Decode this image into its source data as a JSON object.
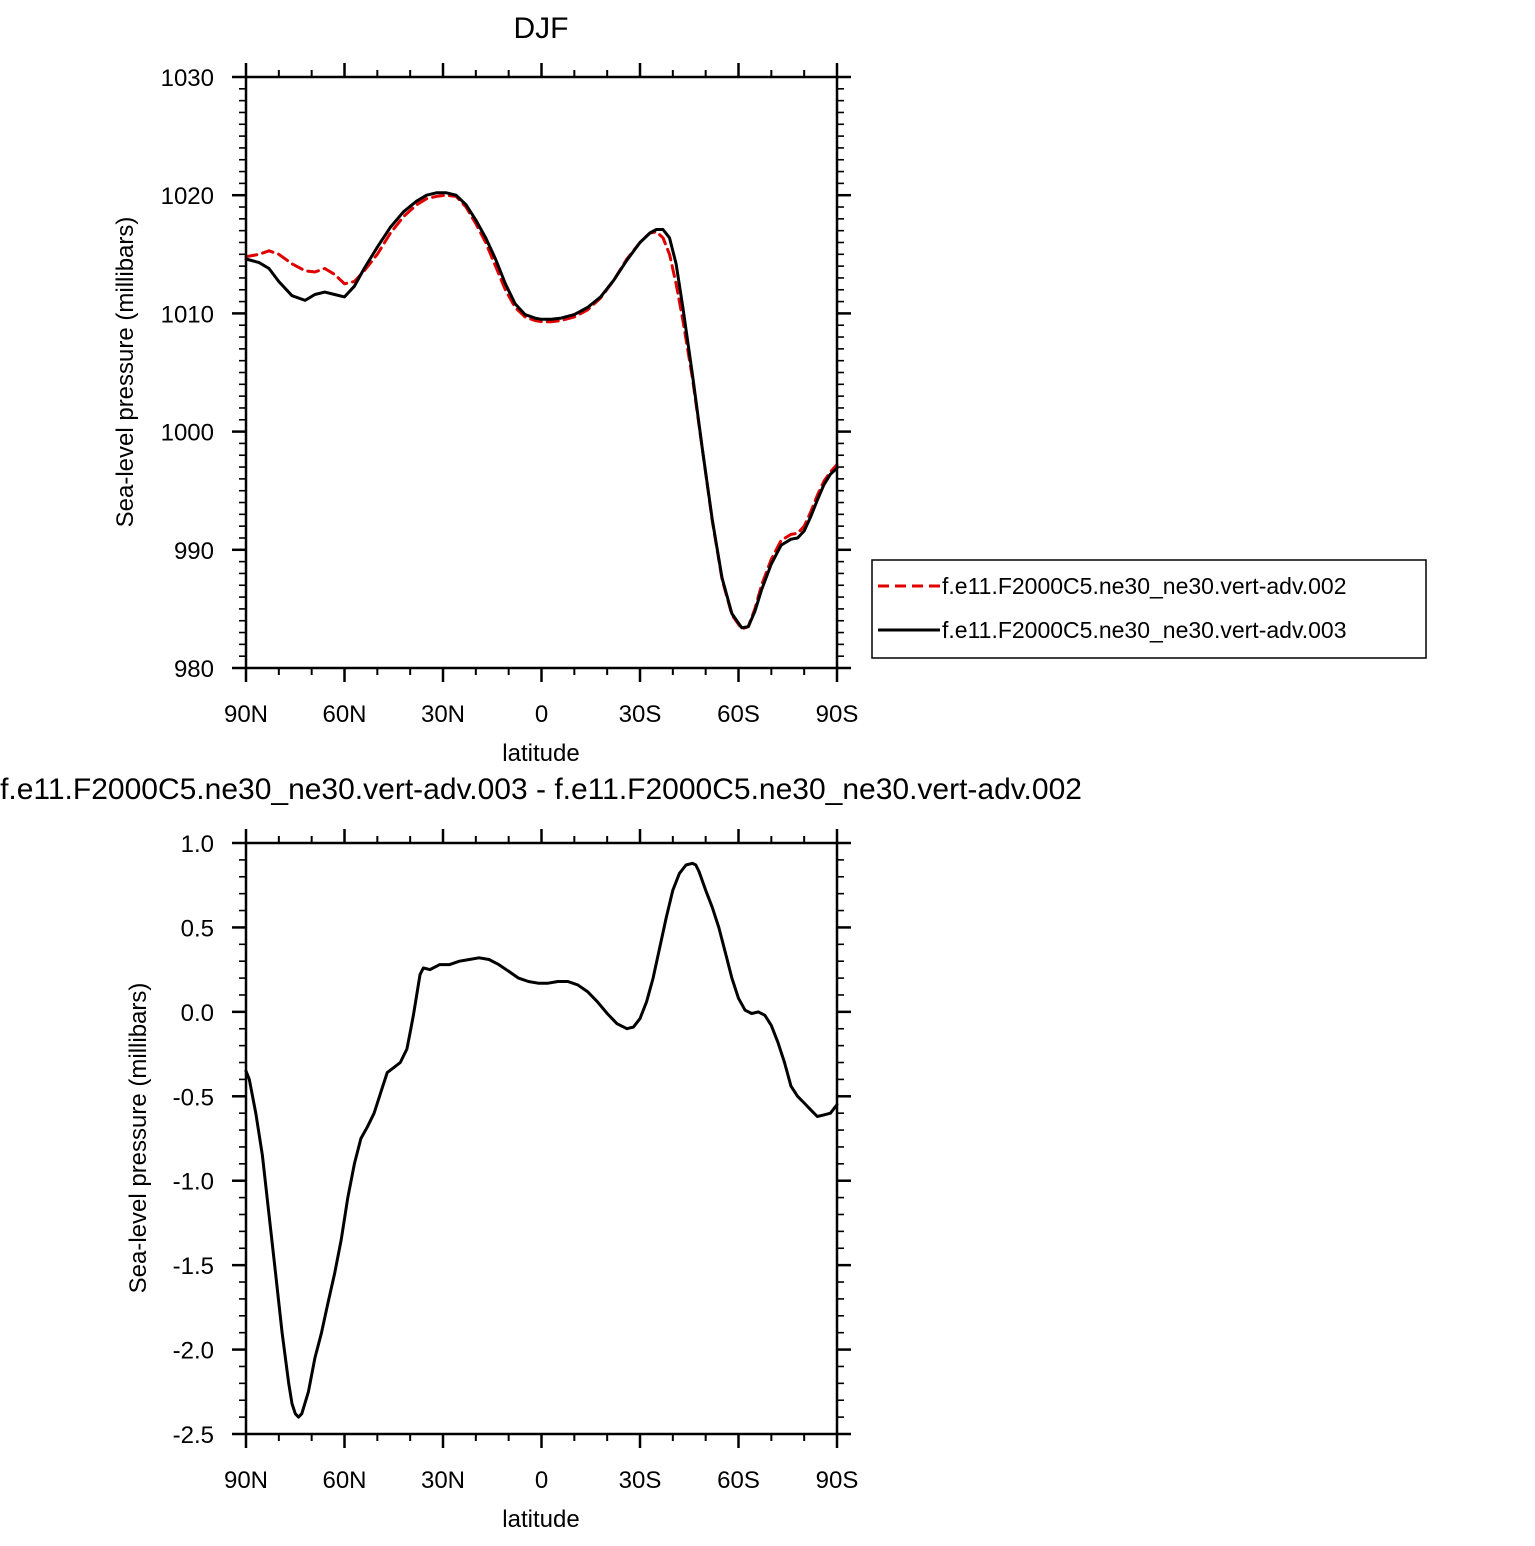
{
  "chart_data": [
    {
      "type": "line",
      "title": "DJF",
      "xlabel": "latitude",
      "ylabel": "Sea-level pressure (millibars)",
      "xlim": [
        -90,
        90
      ],
      "ylim": [
        980,
        1030
      ],
      "x_ticks": [
        {
          "value": -90,
          "label": "90N"
        },
        {
          "value": -60,
          "label": "60N"
        },
        {
          "value": -30,
          "label": "30N"
        },
        {
          "value": 0,
          "label": "0"
        },
        {
          "value": 30,
          "label": "30S"
        },
        {
          "value": 60,
          "label": "60S"
        },
        {
          "value": 90,
          "label": "90S"
        }
      ],
      "y_ticks": [
        {
          "value": 980,
          "label": "980"
        },
        {
          "value": 990,
          "label": "990"
        },
        {
          "value": 1000,
          "label": "1000"
        },
        {
          "value": 1010,
          "label": "1010"
        },
        {
          "value": 1020,
          "label": "1020"
        },
        {
          "value": 1030,
          "label": "1030"
        }
      ],
      "legend": "right",
      "series": [
        {
          "name": "f.e11.F2000C5.ne30_ne30.vert-adv.002",
          "color": "#e00000",
          "dash": "dashed",
          "x": [
            -90,
            -86,
            -83,
            -80,
            -76,
            -72,
            -69,
            -66,
            -63,
            -60,
            -57,
            -54,
            -50,
            -46,
            -42,
            -38,
            -35,
            -32,
            -29,
            -26,
            -23,
            -20,
            -17,
            -14,
            -11,
            -8,
            -5,
            -2,
            0,
            3,
            6,
            10,
            14,
            18,
            22,
            26,
            30,
            33,
            35,
            37,
            39,
            41,
            43,
            46,
            49,
            52,
            55,
            58,
            61,
            63,
            65,
            67,
            70,
            73,
            76,
            78,
            80,
            82,
            84,
            86,
            88,
            90
          ],
          "y": [
            1014.8,
            1015.0,
            1015.3,
            1015.0,
            1014.2,
            1013.6,
            1013.5,
            1013.8,
            1013.3,
            1012.5,
            1012.7,
            1013.6,
            1015.0,
            1016.8,
            1018.2,
            1019.2,
            1019.7,
            1019.9,
            1020.0,
            1019.9,
            1019.0,
            1017.6,
            1016.0,
            1014.0,
            1012.0,
            1010.5,
            1009.7,
            1009.4,
            1009.3,
            1009.3,
            1009.4,
            1009.7,
            1010.3,
            1011.3,
            1012.8,
            1014.6,
            1016.0,
            1016.8,
            1016.9,
            1016.4,
            1015.0,
            1012.5,
            1009.5,
            1004.5,
            998.5,
            992.5,
            987.5,
            984.5,
            983.3,
            983.5,
            985.0,
            987.0,
            989.2,
            990.8,
            991.3,
            991.4,
            992.0,
            993.2,
            994.6,
            995.8,
            996.6,
            997.2
          ]
        },
        {
          "name": "f.e11.F2000C5.ne30_ne30.vert-adv.003",
          "color": "#000000",
          "dash": "solid",
          "x": [
            -90,
            -86,
            -83,
            -80,
            -76,
            -72,
            -69,
            -66,
            -63,
            -60,
            -57,
            -54,
            -50,
            -46,
            -42,
            -38,
            -35,
            -32,
            -29,
            -26,
            -23,
            -20,
            -17,
            -14,
            -11,
            -8,
            -5,
            -2,
            0,
            3,
            6,
            10,
            14,
            18,
            22,
            26,
            30,
            33,
            35,
            37,
            39,
            41,
            43,
            46,
            49,
            52,
            55,
            58,
            61,
            63,
            65,
            67,
            70,
            73,
            76,
            78,
            80,
            82,
            84,
            86,
            88,
            90
          ],
          "y": [
            1014.6,
            1014.3,
            1013.8,
            1012.7,
            1011.5,
            1011.1,
            1011.6,
            1011.8,
            1011.6,
            1011.4,
            1012.3,
            1013.8,
            1015.6,
            1017.3,
            1018.6,
            1019.5,
            1020.0,
            1020.2,
            1020.2,
            1020.0,
            1019.2,
            1017.9,
            1016.4,
            1014.6,
            1012.5,
            1010.8,
            1009.9,
            1009.6,
            1009.5,
            1009.5,
            1009.6,
            1009.9,
            1010.5,
            1011.4,
            1012.8,
            1014.5,
            1016.0,
            1016.8,
            1017.1,
            1017.1,
            1016.4,
            1014.2,
            1010.6,
            1004.8,
            998.5,
            992.6,
            987.6,
            984.6,
            983.4,
            983.5,
            984.8,
            986.6,
            988.8,
            990.4,
            990.9,
            991.0,
            991.6,
            992.8,
            994.2,
            995.5,
            996.4,
            996.9
          ]
        }
      ]
    },
    {
      "type": "line",
      "title": "f.e11.F2000C5.ne30_ne30.vert-adv.003 - f.e11.F2000C5.ne30_ne30.vert-adv.002",
      "xlabel": "latitude",
      "ylabel": "Sea-level pressure (millibars)",
      "xlim": [
        -90,
        90
      ],
      "ylim": [
        -2.5,
        1.0
      ],
      "x_ticks": [
        {
          "value": -90,
          "label": "90N"
        },
        {
          "value": -60,
          "label": "60N"
        },
        {
          "value": -30,
          "label": "30N"
        },
        {
          "value": 0,
          "label": "0"
        },
        {
          "value": 30,
          "label": "30S"
        },
        {
          "value": 60,
          "label": "60S"
        },
        {
          "value": 90,
          "label": "90S"
        }
      ],
      "y_ticks": [
        {
          "value": -2.5,
          "label": "-2.5"
        },
        {
          "value": -2.0,
          "label": "-2.0"
        },
        {
          "value": -1.5,
          "label": "-1.5"
        },
        {
          "value": -1.0,
          "label": "-1.0"
        },
        {
          "value": -0.5,
          "label": "-0.5"
        },
        {
          "value": 0.0,
          "label": "0.0"
        },
        {
          "value": 0.5,
          "label": "0.5"
        },
        {
          "value": 1.0,
          "label": "1.0"
        }
      ],
      "series": [
        {
          "color": "#000000",
          "dash": "solid",
          "x": [
            -90,
            -89,
            -87,
            -85,
            -83,
            -81,
            -79,
            -77,
            -76,
            -75,
            -74,
            -73,
            -71,
            -69,
            -67,
            -65,
            -63,
            -61,
            -59,
            -57,
            -55,
            -53,
            -51,
            -49,
            -47,
            -45,
            -43,
            -41,
            -40,
            -39,
            -38,
            -37,
            -36,
            -34,
            -32,
            -31,
            -30,
            -28,
            -25,
            -22,
            -19,
            -16,
            -13,
            -10,
            -7,
            -4,
            -1,
            2,
            5,
            8,
            11,
            14,
            17,
            20,
            23,
            26,
            28,
            30,
            32,
            34,
            36,
            38,
            40,
            42,
            44,
            46,
            47,
            48,
            50,
            52,
            54,
            56,
            58,
            60,
            62,
            64,
            66,
            68,
            70,
            72,
            74,
            76,
            78,
            80,
            82,
            84,
            86,
            88,
            90
          ],
          "y": [
            -0.35,
            -0.4,
            -0.6,
            -0.85,
            -1.2,
            -1.55,
            -1.9,
            -2.2,
            -2.32,
            -2.38,
            -2.4,
            -2.38,
            -2.25,
            -2.05,
            -1.9,
            -1.72,
            -1.55,
            -1.35,
            -1.1,
            -0.9,
            -0.75,
            -0.68,
            -0.6,
            -0.48,
            -0.36,
            -0.33,
            -0.3,
            -0.22,
            -0.12,
            -0.02,
            0.1,
            0.22,
            0.26,
            0.25,
            0.27,
            0.28,
            0.28,
            0.28,
            0.3,
            0.31,
            0.32,
            0.31,
            0.28,
            0.24,
            0.2,
            0.18,
            0.17,
            0.17,
            0.18,
            0.18,
            0.16,
            0.12,
            0.06,
            -0.01,
            -0.07,
            -0.1,
            -0.09,
            -0.04,
            0.06,
            0.2,
            0.38,
            0.56,
            0.72,
            0.82,
            0.87,
            0.88,
            0.87,
            0.83,
            0.72,
            0.62,
            0.5,
            0.35,
            0.2,
            0.08,
            0.01,
            -0.01,
            0.0,
            -0.02,
            -0.08,
            -0.18,
            -0.3,
            -0.44,
            -0.5,
            -0.54,
            -0.58,
            -0.62,
            -0.61,
            -0.6,
            -0.55
          ]
        }
      ]
    }
  ]
}
